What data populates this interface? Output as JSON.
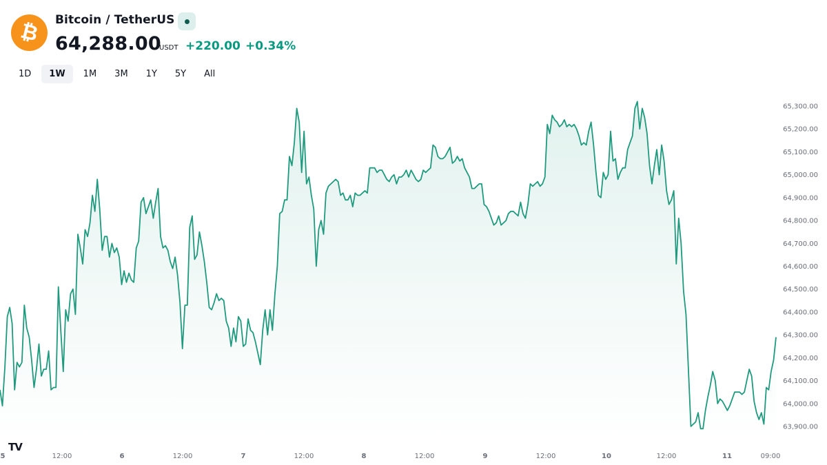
{
  "header": {
    "title": "Bitcoin / TetherUS",
    "price": "64,288.00",
    "currency": "USDT",
    "change_abs": "+220.00",
    "change_pct": "+0.34%",
    "logo_glyph": "₿",
    "logo_color": "#f7931a",
    "live_icon": "live-dot-icon"
  },
  "ranges": {
    "items": [
      "1D",
      "1W",
      "1M",
      "3M",
      "1Y",
      "5Y",
      "All"
    ],
    "active": "1W"
  },
  "watermark": "TV",
  "colors": {
    "line": "#1f9a7e",
    "up": "#089981",
    "axis_text": "#6a6d78"
  },
  "chart_data": {
    "type": "area",
    "x_tick_labels": [
      "5",
      "12:00",
      "6",
      "12:00",
      "7",
      "12:00",
      "8",
      "12:00",
      "9",
      "12:00",
      "10",
      "12:00",
      "11",
      "09:00"
    ],
    "y_tick_labels": [
      "63,900.00",
      "64,000.00",
      "64,100.00",
      "64,200.00",
      "64,300.00",
      "64,400.00",
      "64,500.00",
      "64,600.00",
      "64,700.00",
      "64,800.00",
      "64,900.00",
      "65,000.00",
      "65,100.00",
      "65,200.00",
      "65,300.00"
    ],
    "ylim": [
      63880,
      65320
    ],
    "y_axis_position": "right",
    "grid": false,
    "x_start": "5",
    "x_step_hours": 1,
    "values": [
      64060,
      63990,
      64160,
      64380,
      64420,
      64350,
      64060,
      64180,
      64160,
      64180,
      64430,
      64330,
      64290,
      64190,
      64070,
      64150,
      64260,
      64120,
      64150,
      64150,
      64230,
      64060,
      64070,
      64070,
      64510,
      64320,
      64140,
      64410,
      64360,
      64480,
      64500,
      64390,
      64740,
      64680,
      64610,
      64760,
      64730,
      64790,
      64910,
      64840,
      64980,
      64850,
      64670,
      64730,
      64730,
      64640,
      64700,
      64660,
      64680,
      64640,
      64520,
      64580,
      64530,
      64570,
      64540,
      64530,
      64680,
      64710,
      64880,
      64900,
      64830,
      64860,
      64890,
      64810,
      64880,
      64940,
      64730,
      64680,
      64690,
      64670,
      64620,
      64590,
      64640,
      64560,
      64440,
      64240,
      64430,
      64430,
      64770,
      64820,
      64630,
      64650,
      64750,
      64690,
      64620,
      64530,
      64420,
      64410,
      64440,
      64480,
      64450,
      64460,
      64450,
      64360,
      64330,
      64250,
      64330,
      64270,
      64380,
      64360,
      64250,
      64260,
      64370,
      64320,
      64310,
      64270,
      64220,
      64170,
      64320,
      64410,
      64300,
      64410,
      64320,
      64480,
      64600,
      64830,
      64840,
      64890,
      64890,
      65080,
      65040,
      65140,
      65290,
      65230,
      65010,
      65190,
      64960,
      64990,
      64910,
      64850,
      64600,
      64760,
      64800,
      64740,
      64920,
      64950,
      64960,
      64970,
      64980,
      64970,
      64910,
      64920,
      64890,
      64890,
      64910,
      64860,
      64920,
      64910,
      64910,
      64920,
      64930,
      64920,
      65030,
      65030,
      65030,
      65010,
      65020,
      65020,
      65000,
      64980,
      64970,
      64990,
      65000,
      64960,
      64990,
      64990,
      65000,
      65020,
      64990,
      65020,
      65000,
      64980,
      64970,
      64980,
      65020,
      65010,
      65020,
      65030,
      65130,
      65120,
      65080,
      65070,
      65070,
      65080,
      65100,
      65120,
      65050,
      65060,
      65080,
      65060,
      65070,
      65030,
      65010,
      64990,
      64940,
      64940,
      64950,
      64960,
      64960,
      64870,
      64860,
      64840,
      64810,
      64780,
      64790,
      64820,
      64780,
      64790,
      64800,
      64830,
      64840,
      64840,
      64830,
      64820,
      64880,
      64830,
      64810,
      64870,
      64960,
      64950,
      64960,
      64970,
      64950,
      64960,
      64990,
      65220,
      65180,
      65260,
      65240,
      65230,
      65210,
      65220,
      65240,
      65210,
      65220,
      65210,
      65220,
      65200,
      65170,
      65130,
      65140,
      65130,
      65190,
      65230,
      65130,
      65010,
      64910,
      64900,
      65010,
      64980,
      65000,
      65190,
      65060,
      65070,
      64980,
      65010,
      65030,
      65030,
      65110,
      65140,
      65170,
      65290,
      65320,
      65200,
      65290,
      65250,
      65180,
      65040,
      64960,
      65040,
      65110,
      65000,
      65130,
      65060,
      64930,
      64870,
      64890,
      64930,
      64610,
      64810,
      64700,
      64490,
      64390,
      64150,
      63900,
      63910,
      63920,
      63960,
      63890,
      63890,
      63970,
      64030,
      64080,
      64140,
      64100,
      64000,
      64020,
      64010,
      63990,
      63970,
      63990,
      64020,
      64050,
      64050,
      64050,
      64040,
      64050,
      64100,
      64150,
      64120,
      64010,
      63960,
      63930,
      63960,
      63910,
      64070,
      64060,
      64140,
      64190,
      64290
    ]
  }
}
